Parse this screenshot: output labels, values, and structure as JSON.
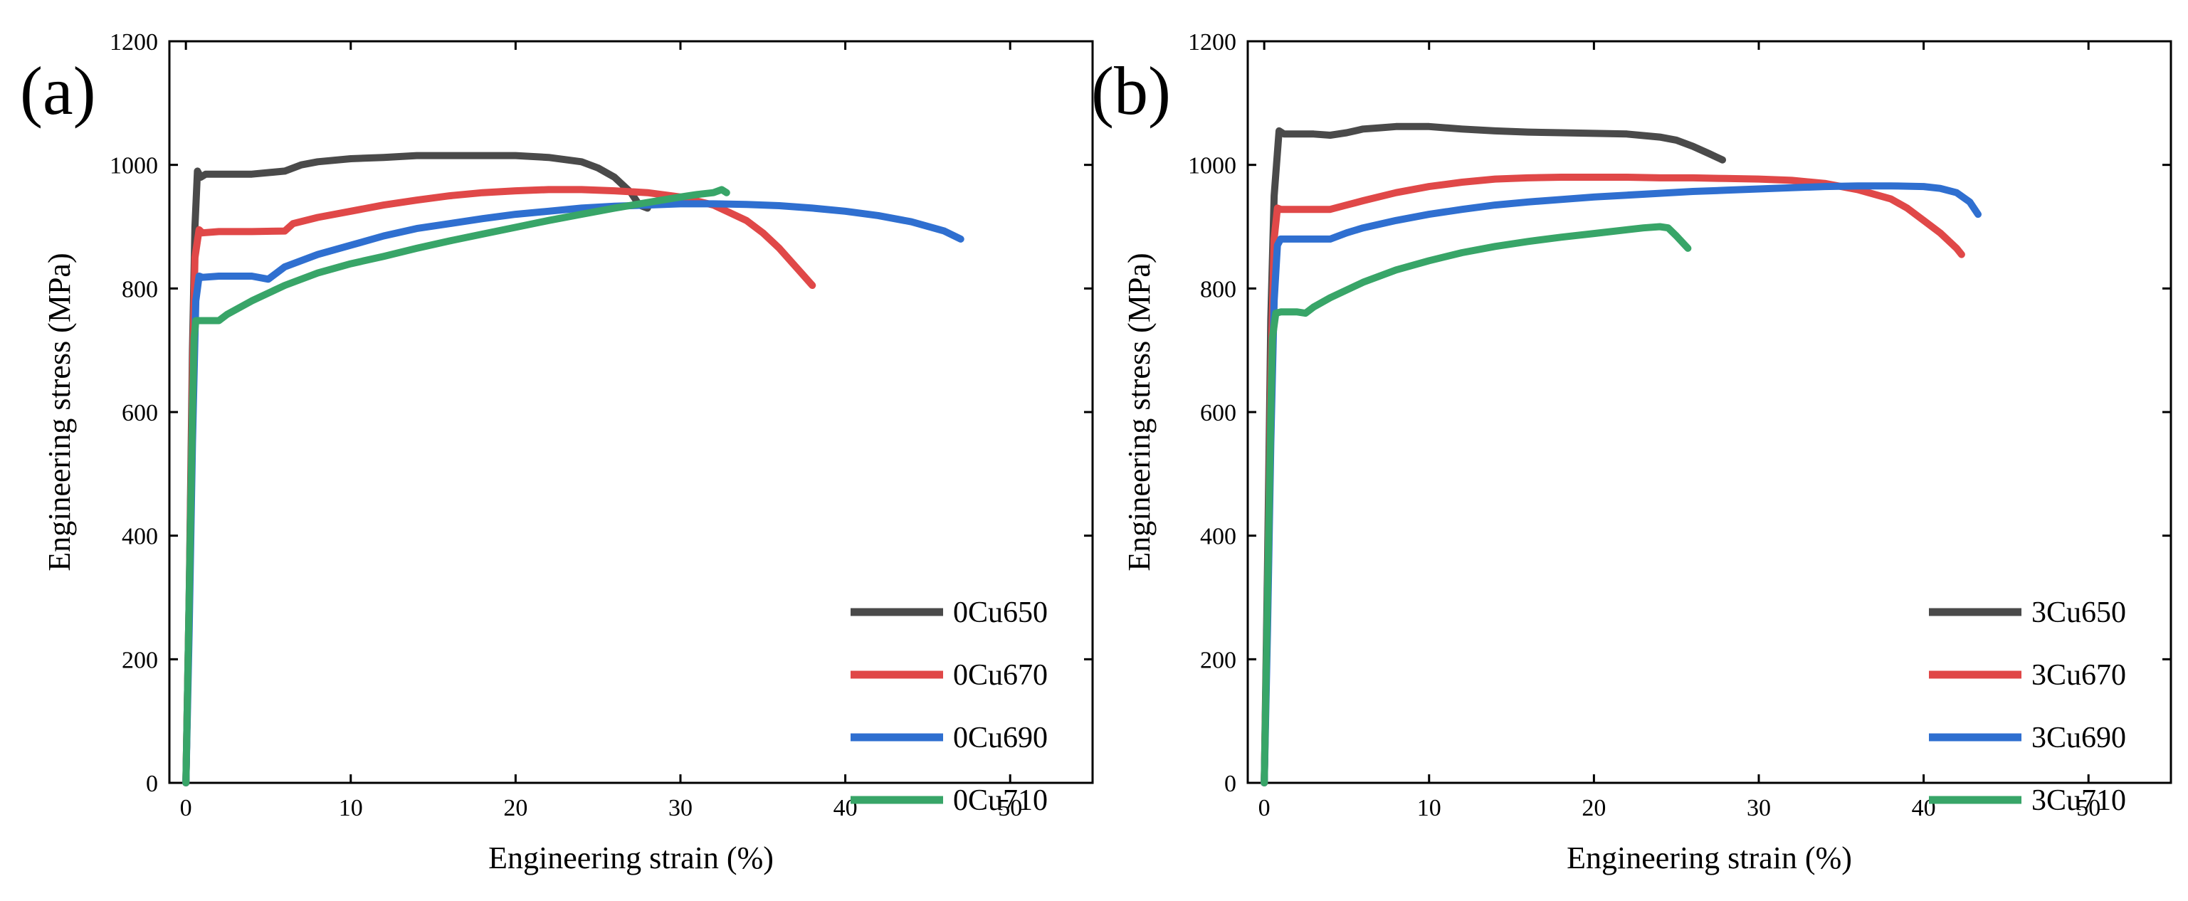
{
  "chart_data": [
    {
      "type": "line",
      "panel_label": "(a)",
      "title": "",
      "xlabel": "Engineering strain (%)",
      "ylabel": "Engineering stress (MPa)",
      "xlim": [
        -1,
        55
      ],
      "ylim": [
        0,
        1200
      ],
      "xticks": [
        0,
        10,
        20,
        30,
        40,
        50
      ],
      "yticks": [
        0,
        200,
        400,
        600,
        800,
        1000,
        1200
      ],
      "legend_position": "bottom-right",
      "grid": false,
      "series": [
        {
          "name": "0Cu650",
          "color": "#4a4a4a",
          "x": [
            0,
            0.2,
            0.4,
            0.55,
            0.7,
            0.9,
            1.2,
            2,
            4,
            6,
            7,
            8,
            10,
            12,
            14,
            16,
            18,
            20,
            22,
            24,
            25,
            26,
            27,
            27.5,
            28
          ],
          "y": [
            0,
            300,
            700,
            900,
            990,
            980,
            985,
            985,
            985,
            990,
            1000,
            1005,
            1010,
            1012,
            1015,
            1015,
            1015,
            1015,
            1012,
            1005,
            995,
            980,
            955,
            935,
            930
          ]
        },
        {
          "name": "0Cu670",
          "color": "#e04848",
          "x": [
            0,
            0.2,
            0.4,
            0.55,
            0.8,
            1,
            2,
            4,
            6,
            6.5,
            8,
            10,
            12,
            14,
            16,
            18,
            20,
            22,
            24,
            26,
            28,
            30,
            32,
            34,
            35,
            36,
            37,
            38
          ],
          "y": [
            0,
            300,
            650,
            850,
            895,
            890,
            892,
            892,
            893,
            905,
            915,
            925,
            935,
            943,
            950,
            955,
            958,
            960,
            960,
            958,
            955,
            948,
            935,
            910,
            890,
            865,
            835,
            805
          ]
        },
        {
          "name": "0Cu690",
          "color": "#2f6fd0",
          "x": [
            0,
            0.2,
            0.4,
            0.6,
            0.8,
            1,
            2,
            4,
            5,
            6,
            8,
            10,
            12,
            14,
            16,
            18,
            20,
            22,
            24,
            26,
            28,
            30,
            32,
            34,
            36,
            38,
            40,
            42,
            44,
            46,
            47
          ],
          "y": [
            0,
            250,
            550,
            780,
            820,
            818,
            820,
            820,
            815,
            835,
            855,
            870,
            885,
            897,
            905,
            913,
            920,
            925,
            930,
            933,
            935,
            937,
            937,
            936,
            934,
            930,
            925,
            918,
            908,
            893,
            880
          ]
        },
        {
          "name": "0Cu710",
          "color": "#38a568",
          "x": [
            0,
            0.2,
            0.4,
            0.5,
            0.6,
            1,
            2,
            2.5,
            4,
            6,
            8,
            10,
            12,
            14,
            16,
            18,
            20,
            22,
            24,
            26,
            28,
            30,
            31,
            32,
            32.5,
            32.8
          ],
          "y": [
            0,
            300,
            600,
            720,
            748,
            748,
            748,
            758,
            780,
            805,
            825,
            840,
            852,
            865,
            877,
            888,
            899,
            910,
            920,
            930,
            939,
            948,
            952,
            955,
            960,
            955
          ]
        }
      ]
    },
    {
      "type": "line",
      "panel_label": "(b)",
      "title": "",
      "xlabel": "Engineering strain (%)",
      "ylabel": "Engineering stress (MPa)",
      "xlim": [
        -1,
        55
      ],
      "ylim": [
        0,
        1200
      ],
      "xticks": [
        0,
        10,
        20,
        30,
        40,
        50
      ],
      "yticks": [
        0,
        200,
        400,
        600,
        800,
        1000,
        1200
      ],
      "legend_position": "bottom-right",
      "grid": false,
      "series": [
        {
          "name": "3Cu650",
          "color": "#4a4a4a",
          "x": [
            0,
            0.2,
            0.4,
            0.6,
            0.9,
            1.2,
            2,
            3,
            4,
            5,
            6,
            7,
            8,
            9,
            10,
            12,
            14,
            16,
            18,
            20,
            22,
            24,
            25,
            26,
            27,
            27.8
          ],
          "y": [
            0,
            350,
            750,
            950,
            1055,
            1050,
            1050,
            1050,
            1048,
            1052,
            1058,
            1060,
            1062,
            1062,
            1062,
            1058,
            1055,
            1053,
            1052,
            1051,
            1050,
            1045,
            1040,
            1030,
            1018,
            1008
          ]
        },
        {
          "name": "3Cu670",
          "color": "#e04848",
          "x": [
            0,
            0.2,
            0.4,
            0.6,
            0.8,
            1,
            2,
            3,
            4,
            5,
            6,
            8,
            10,
            12,
            14,
            16,
            18,
            20,
            22,
            24,
            26,
            28,
            30,
            32,
            34,
            36,
            38,
            39,
            40,
            41,
            42,
            42.3
          ],
          "y": [
            0,
            300,
            650,
            880,
            930,
            928,
            928,
            928,
            928,
            935,
            942,
            955,
            965,
            972,
            977,
            979,
            980,
            980,
            980,
            979,
            979,
            978,
            977,
            975,
            970,
            960,
            945,
            930,
            910,
            890,
            865,
            855
          ]
        },
        {
          "name": "3Cu690",
          "color": "#2f6fd0",
          "x": [
            0,
            0.2,
            0.4,
            0.6,
            0.8,
            1,
            2,
            3,
            4,
            5,
            6,
            8,
            10,
            12,
            14,
            16,
            18,
            20,
            22,
            24,
            26,
            28,
            30,
            32,
            34,
            36,
            38,
            40,
            41,
            42,
            42.8,
            43.3
          ],
          "y": [
            0,
            250,
            550,
            780,
            870,
            880,
            880,
            880,
            880,
            890,
            898,
            910,
            920,
            928,
            935,
            940,
            944,
            948,
            951,
            954,
            957,
            959,
            961,
            963,
            965,
            966,
            966,
            965,
            962,
            955,
            940,
            920
          ]
        },
        {
          "name": "3Cu710",
          "color": "#38a568",
          "x": [
            0,
            0.2,
            0.4,
            0.5,
            0.7,
            1,
            2,
            2.5,
            3,
            4,
            6,
            8,
            10,
            12,
            14,
            16,
            18,
            20,
            22,
            23,
            24,
            24.5,
            25,
            25.7
          ],
          "y": [
            0,
            300,
            600,
            720,
            760,
            762,
            762,
            760,
            770,
            785,
            810,
            830,
            845,
            858,
            868,
            876,
            883,
            889,
            895,
            898,
            900,
            898,
            885,
            865
          ]
        }
      ]
    }
  ]
}
